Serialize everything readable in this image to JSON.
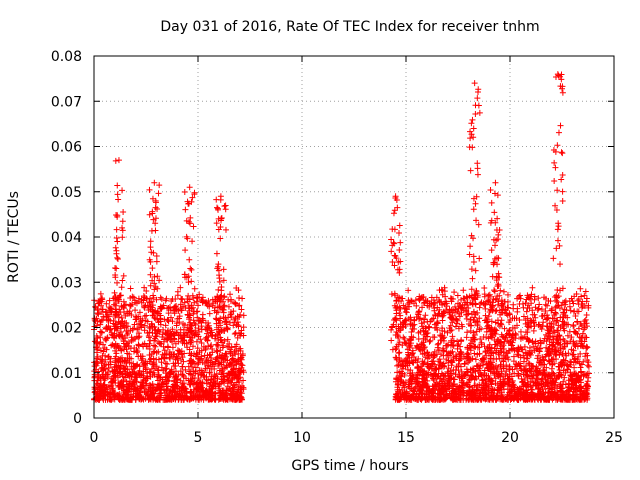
{
  "chart_data": {
    "type": "scatter",
    "title": "Day 031 of 2016, Rate Of TEC Index for receiver tnhm",
    "xlabel": "GPS time / hours",
    "ylabel": "ROTI / TECUs",
    "xlim": [
      0,
      25
    ],
    "ylim": [
      0,
      0.08
    ],
    "xticks": [
      0,
      5,
      10,
      15,
      20,
      25
    ],
    "yticks": [
      0,
      0.01,
      0.02,
      0.03,
      0.04,
      0.05,
      0.06,
      0.07,
      0.08
    ],
    "xtick_labels": [
      "0",
      "5",
      "10",
      "15",
      "20",
      "25"
    ],
    "ytick_labels": [
      "0",
      "0.01",
      "0.02",
      "0.03",
      "0.04",
      "0.05",
      "0.06",
      "0.07",
      "0.08"
    ],
    "grid": true,
    "marker": "+",
    "color": "#ff0000",
    "series": [
      {
        "segments": [
          {
            "x_start": 0.0,
            "x_end": 7.2
          },
          {
            "x_start": 14.5,
            "x_end": 23.8
          }
        ],
        "typical_y_range": [
          0.004,
          0.025
        ],
        "peaks": [
          {
            "x": 1.2,
            "y": 0.057
          },
          {
            "x": 2.9,
            "y": 0.052
          },
          {
            "x": 4.6,
            "y": 0.051
          },
          {
            "x": 6.1,
            "y": 0.049
          },
          {
            "x": 14.5,
            "y": 0.049
          },
          {
            "x": 18.3,
            "y": 0.074
          },
          {
            "x": 19.3,
            "y": 0.052
          },
          {
            "x": 22.3,
            "y": 0.076
          }
        ]
      }
    ]
  }
}
